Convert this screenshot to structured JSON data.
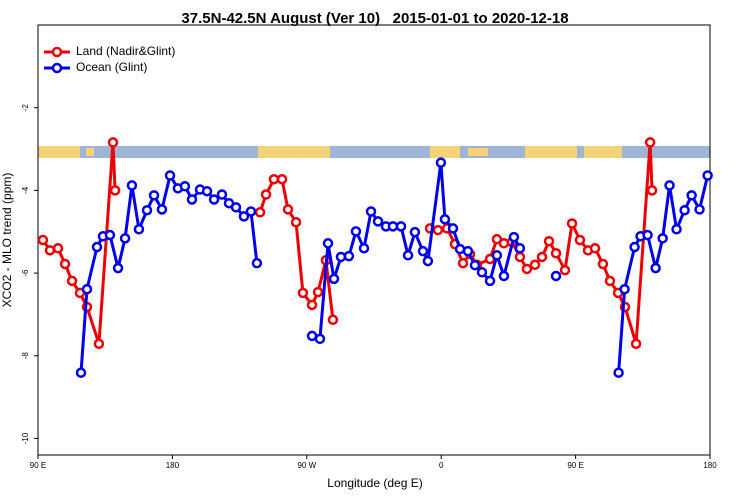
{
  "chart_data": {
    "type": "line",
    "title": "37.5N-42.5N August (Ver 10)   2015-01-01 to 2020-12-18",
    "xlabel": "Longitude (deg E)",
    "ylabel": "XCO2 - MLO trend (ppm)",
    "xlim": [
      90,
      540
    ],
    "ylim": [
      -10.4,
      0
    ],
    "xticks": [
      {
        "value": 90,
        "label": "90 E"
      },
      180,
      {
        "value": 270,
        "label": "90 W"
      },
      {
        "value": 360,
        "label": "0"
      },
      {
        "value": 450,
        "label": "90 E"
      },
      {
        "value": 540,
        "label": "180"
      }
    ],
    "yticks": [
      -10,
      -8,
      -6,
      -4,
      -2
    ],
    "legend": "top-left",
    "series": [
      {
        "name": "Land (Nadir&Glint)",
        "color": "#ee0000",
        "x": [
          93.3,
          98,
          103.4,
          108.1,
          112.8,
          118.1,
          122.8,
          130.8,
          140.2,
          141.6,
          null,
          238.7,
          242.7,
          248,
          253.4,
          257.4,
          262.8,
          267.4,
          273.5,
          277.5,
          282.8,
          287.5,
          null,
          352.5,
          357.8,
          363.9,
          369.2,
          374.6,
          379.3,
          384,
          392.7,
          397.3,
          402,
          407.4,
          412.7,
          417.4,
          422.8,
          427.5,
          432.2,
          436.9,
          442.9,
          447.6,
          452.9,
          458.3,
          463,
          468.3,
          473,
          478.4,
          483.1,
          490.5,
          499.9,
          501.2
        ],
        "values": [
          -5.2,
          -5.45,
          -5.4,
          -5.78,
          -6.19,
          -6.48,
          -6.82,
          -7.71,
          -2.84,
          -4.0,
          null,
          -4.53,
          -4.1,
          -3.73,
          -3.73,
          -4.46,
          -4.77,
          -6.48,
          -6.77,
          -6.46,
          -5.69,
          -7.13,
          null,
          -4.92,
          -4.96,
          -4.92,
          -5.3,
          -5.76,
          -5.54,
          -5.8,
          -5.66,
          -5.18,
          -5.28,
          -5.25,
          -5.61,
          -5.9,
          -5.8,
          -5.61,
          -5.23,
          -5.52,
          -5.93,
          -4.8,
          -5.2,
          -5.45,
          -5.4,
          -5.78,
          -6.19,
          -6.48,
          -6.82,
          -7.71,
          -2.84,
          -4.0
        ]
      },
      {
        "name": "Ocean (Glint)",
        "color": "#0000ee",
        "x": [
          118.8,
          122.8,
          129.5,
          133.5,
          138.2,
          143.6,
          148.3,
          152.9,
          157.6,
          163,
          167.7,
          173,
          178.4,
          183.7,
          188.4,
          193.1,
          198.5,
          203.2,
          207.9,
          213.2,
          217.9,
          222.6,
          227.9,
          232.6,
          236.6,
          null,
          273.5,
          278.8,
          284.2,
          288.2,
          292.9,
          298.2,
          302.9,
          308.3,
          313,
          317.7,
          323,
          327.7,
          333.1,
          337.8,
          342.4,
          347.8,
          351.1,
          359.8,
          362.5,
          367.9,
          372.6,
          377.9,
          382.6,
          387.3,
          392.7,
          397.3,
          402,
          408.7,
          412.7,
          null,
          436.9,
          null,
          478.8,
          482.8,
          489.5,
          493.5,
          498.2,
          503.6,
          508.3,
          512.9,
          517.6,
          523,
          527.7,
          533,
          538.4
        ],
        "values": [
          -8.41,
          -6.39,
          -5.37,
          -5.11,
          -5.08,
          -5.88,
          -5.16,
          -3.88,
          -4.94,
          -4.48,
          -4.12,
          -4.46,
          -3.64,
          -3.95,
          -3.9,
          -4.22,
          -3.98,
          -4.02,
          -4.22,
          -4.1,
          -4.31,
          -4.41,
          -4.63,
          -4.51,
          -5.76,
          null,
          -7.52,
          -7.59,
          -5.28,
          -6.14,
          -5.61,
          -5.59,
          -4.99,
          -5.4,
          -4.51,
          -4.75,
          -4.87,
          -4.87,
          -4.87,
          -5.57,
          -5.01,
          -5.47,
          -5.71,
          -3.33,
          -4.7,
          -4.92,
          -5.42,
          -5.47,
          -5.81,
          -5.98,
          -6.19,
          -5.57,
          -6.07,
          -5.13,
          -5.4,
          null,
          -6.07,
          null,
          -8.41,
          -6.39,
          -5.37,
          -5.11,
          -5.08,
          -5.88,
          -5.16,
          -3.88,
          -4.94,
          -4.48,
          -4.12,
          -4.46,
          -3.64
        ]
      }
    ]
  }
}
